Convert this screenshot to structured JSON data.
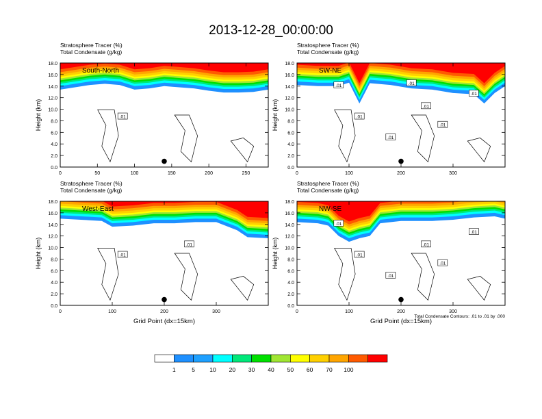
{
  "title": "2013-12-28_00:00:00",
  "panels": [
    {
      "id": "south-north",
      "tracer_label": "Stratosphere Tracer   (%)",
      "condensate_label": "Total Condensate   (g/kg)",
      "section_label": "South-North",
      "ylabel": "Height (km)",
      "xlabel": "",
      "footnote": "",
      "xticks": [
        "0",
        "50",
        "100",
        "150",
        "200",
        "250"
      ],
      "yticks": [
        "0.0",
        "2.0",
        "4.0",
        "6.0",
        "8.0",
        "10.0",
        "12.0",
        "14.0",
        "16.0",
        "18.0"
      ],
      "contour_labels": [
        ".01"
      ]
    },
    {
      "id": "sw-ne",
      "tracer_label": "Stratosphere Tracer   (%)",
      "condensate_label": "Total Condensate   (g/kg)",
      "section_label": "SW-NE",
      "ylabel": "Height (km)",
      "xlabel": "",
      "footnote": "",
      "xticks": [
        "0",
        "100",
        "200",
        "300"
      ],
      "yticks": [
        "0.0",
        "2.0",
        "4.0",
        "6.0",
        "8.0",
        "10.0",
        "12.0",
        "14.0",
        "16.0",
        "18.0"
      ],
      "contour_labels": [
        ".01",
        ".01",
        ".01",
        ".01",
        ".01",
        ".01",
        ".01"
      ]
    },
    {
      "id": "west-east",
      "tracer_label": "Stratosphere Tracer   (%)",
      "condensate_label": "Total Condensate   (g/kg)",
      "section_label": "West-East",
      "ylabel": "Height (km)",
      "xlabel": "Grid Point (dx=15km)",
      "footnote": "",
      "xticks": [
        "0",
        "100",
        "200",
        "300"
      ],
      "yticks": [
        "0.0",
        "2.0",
        "4.0",
        "6.0",
        "8.0",
        "10.0",
        "12.0",
        "14.0",
        "16.0",
        "18.0"
      ],
      "contour_labels": [
        ".01",
        ".01"
      ]
    },
    {
      "id": "nw-se",
      "tracer_label": "Stratosphere Tracer   (%)",
      "condensate_label": "Total Condensate   (g/kg)",
      "section_label": "NW-SE",
      "ylabel": "Height (km)",
      "xlabel": "Grid Point (dx=15km)",
      "footnote": "Total Condensate Contours: .01 to .01 by .000",
      "xticks": [
        "0",
        "100",
        "200",
        "300"
      ],
      "yticks": [
        "0.0",
        "2.0",
        "4.0",
        "6.0",
        "8.0",
        "10.0",
        "12.0",
        "14.0",
        "16.0",
        "18.0"
      ],
      "contour_labels": [
        ".01",
        ".01",
        ".01",
        ".01",
        ".01",
        ".01"
      ]
    }
  ],
  "chart_data": [
    {
      "type": "heatmap",
      "panel": "South-North",
      "x_range": [
        0,
        280
      ],
      "ylim": [
        0,
        18
      ],
      "tropopause_km": [
        [
          0,
          14.4
        ],
        [
          20,
          14.8
        ],
        [
          40,
          15.2
        ],
        [
          60,
          15.4
        ],
        [
          80,
          15.2
        ],
        [
          100,
          14.4
        ],
        [
          120,
          14.6
        ],
        [
          140,
          15.0
        ],
        [
          160,
          14.8
        ],
        [
          180,
          14.6
        ],
        [
          200,
          14.2
        ],
        [
          220,
          13.9
        ],
        [
          240,
          13.9
        ],
        [
          260,
          14.0
        ],
        [
          280,
          14.4
        ]
      ],
      "condensate_contour": ".01",
      "marker": {
        "x": 140,
        "y_km": 1.0
      }
    },
    {
      "type": "heatmap",
      "panel": "SW-NE",
      "x_range": [
        0,
        400
      ],
      "ylim": [
        0,
        18
      ],
      "tropopause_km": [
        [
          0,
          15.2
        ],
        [
          40,
          15.0
        ],
        [
          80,
          15.0
        ],
        [
          100,
          15.6
        ],
        [
          120,
          12.0
        ],
        [
          140,
          15.5
        ],
        [
          180,
          15.2
        ],
        [
          220,
          14.6
        ],
        [
          260,
          14.4
        ],
        [
          300,
          13.8
        ],
        [
          340,
          13.6
        ],
        [
          360,
          12.0
        ],
        [
          380,
          13.8
        ],
        [
          400,
          15.0
        ]
      ],
      "condensate_contour": ".01",
      "marker": {
        "x": 200,
        "y_km": 1.0
      }
    },
    {
      "type": "heatmap",
      "panel": "West-East",
      "x_range": [
        0,
        400
      ],
      "ylim": [
        0,
        18
      ],
      "tropopause_km": [
        [
          0,
          16.0
        ],
        [
          40,
          15.8
        ],
        [
          80,
          15.6
        ],
        [
          100,
          14.6
        ],
        [
          140,
          14.8
        ],
        [
          180,
          15.2
        ],
        [
          220,
          15.2
        ],
        [
          260,
          15.4
        ],
        [
          300,
          15.4
        ],
        [
          340,
          14.0
        ],
        [
          360,
          12.8
        ],
        [
          400,
          12.6
        ]
      ],
      "condensate_contour": ".01",
      "marker": {
        "x": 200,
        "y_km": 1.0
      }
    },
    {
      "type": "heatmap",
      "panel": "NW-SE",
      "x_range": [
        0,
        400
      ],
      "ylim": [
        0,
        18
      ],
      "tropopause_km": [
        [
          0,
          15.4
        ],
        [
          40,
          15.2
        ],
        [
          60,
          14.8
        ],
        [
          80,
          13.0
        ],
        [
          100,
          12.0
        ],
        [
          120,
          12.6
        ],
        [
          140,
          13.0
        ],
        [
          160,
          15.2
        ],
        [
          200,
          15.6
        ],
        [
          260,
          15.6
        ],
        [
          300,
          15.8
        ],
        [
          340,
          16.2
        ],
        [
          380,
          16.4
        ],
        [
          400,
          16.0
        ]
      ],
      "condensate_contour": ".01",
      "marker": {
        "x": 200,
        "y_km": 1.0
      }
    }
  ],
  "colorbar": {
    "labels": [
      "1",
      "5",
      "10",
      "20",
      "30",
      "40",
      "50",
      "60",
      "70",
      "100"
    ],
    "colors": [
      "#ffffff",
      "#1e90ff",
      "#1ea0ff",
      "#00ffff",
      "#00e87a",
      "#00e000",
      "#a0e632",
      "#ffff00",
      "#ffd000",
      "#ffa500",
      "#ff5a00",
      "#ff0000"
    ]
  }
}
